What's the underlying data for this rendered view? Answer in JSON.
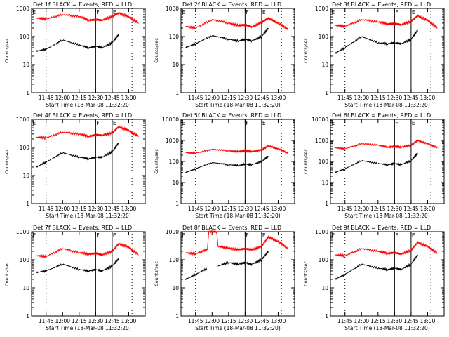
{
  "chart_data": [
    {
      "type": "line",
      "title": "Det 1f BLACK = Events, RED = LLD",
      "xlabel": "Start Time (18-Mar-08 11:32:20)",
      "ylabel": "Counts/sec",
      "yscale": "log",
      "ylim": [
        1,
        1000
      ],
      "xticks": [
        "11:45",
        "12:00",
        "12:15",
        "12:30",
        "12:45",
        "13:00"
      ],
      "yticks": [
        "1",
        "10",
        "100",
        "1000"
      ],
      "markers": {
        "dotted": "11:45",
        "solid": [
          "12:30",
          "12:45"
        ],
        "dotted2": "13:03"
      },
      "flag_labels": [
        "E",
        "F",
        "E"
      ],
      "flag_positions": [
        "11:32",
        "12:30",
        "12:45"
      ],
      "series": [
        {
          "color": "#ff0000",
          "x": [
            11.6,
            11.75,
            12.0,
            12.25,
            12.4,
            12.5,
            12.6,
            12.75,
            12.85,
            13.0,
            13.15
          ],
          "values": [
            450,
            420,
            600,
            520,
            380,
            400,
            380,
            520,
            700,
            500,
            300
          ]
        },
        {
          "color": "#000000",
          "x": [
            11.6,
            11.75,
            12.0,
            12.25,
            12.4,
            12.5,
            12.6,
            12.75,
            12.85
          ],
          "values": [
            30,
            35,
            75,
            50,
            40,
            45,
            40,
            60,
            120
          ]
        }
      ]
    },
    {
      "type": "line",
      "title": "Det 2f BLACK = Events, RED = LLD",
      "xlabel": "Start Time (18-Mar-08 11:32:20)",
      "ylabel": "Counts/sec",
      "yscale": "log",
      "ylim": [
        1,
        1000
      ],
      "xticks": [
        "11:45",
        "12:00",
        "12:15",
        "12:30",
        "12:45",
        "13:00"
      ],
      "yticks": [
        "1",
        "10",
        "100",
        "1000"
      ],
      "markers": {
        "dotted": "11:45",
        "solid": [
          "12:30",
          "12:45"
        ],
        "dotted2": "13:03"
      },
      "flag_labels": [
        "E",
        "F",
        "E"
      ],
      "flag_positions": [
        "11:32",
        "12:30",
        "12:45"
      ],
      "series": [
        {
          "color": "#ff0000",
          "x": [
            11.6,
            11.75,
            12.0,
            12.25,
            12.4,
            12.5,
            12.6,
            12.75,
            12.85,
            13.0,
            13.15
          ],
          "values": [
            230,
            200,
            400,
            300,
            250,
            260,
            220,
            320,
            450,
            300,
            180
          ]
        },
        {
          "color": "#000000",
          "x": [
            11.6,
            11.75,
            12.0,
            12.25,
            12.4,
            12.5,
            12.6,
            12.75,
            12.85
          ],
          "values": [
            40,
            55,
            110,
            80,
            70,
            80,
            70,
            100,
            200
          ]
        }
      ]
    },
    {
      "type": "line",
      "title": "Det 3f BLACK = Events, RED = LLD",
      "xlabel": "Start Time (18-Mar-08 11:32:20)",
      "ylabel": "Counts/sec",
      "yscale": "log",
      "ylim": [
        1,
        1000
      ],
      "xticks": [
        "11:45",
        "12:00",
        "12:15",
        "12:30",
        "12:45",
        "13:00"
      ],
      "yticks": [
        "1",
        "10",
        "100",
        "1000"
      ],
      "markers": {
        "dotted": "11:45",
        "solid": [
          "12:30",
          "12:45"
        ],
        "dotted2": "13:03"
      },
      "flag_labels": [
        "E",
        "F",
        "E"
      ],
      "flag_positions": [
        "11:32",
        "12:30",
        "12:45"
      ],
      "series": [
        {
          "color": "#ff0000",
          "x": [
            11.6,
            11.75,
            12.0,
            12.25,
            12.4,
            12.5,
            12.6,
            12.75,
            12.85,
            13.0,
            13.15
          ],
          "values": [
            250,
            230,
            400,
            330,
            280,
            290,
            260,
            350,
            550,
            380,
            200
          ]
        },
        {
          "color": "#000000",
          "x": [
            11.6,
            11.75,
            12.0,
            12.25,
            12.4,
            12.5,
            12.6,
            12.75,
            12.85
          ],
          "values": [
            25,
            40,
            100,
            60,
            55,
            60,
            55,
            80,
            170
          ]
        }
      ]
    },
    {
      "type": "line",
      "title": "Det 4f BLACK = Events, RED = LLD",
      "xlabel": "Start Time (18-Mar-08 11:32:20)",
      "ylabel": "Counts/sec",
      "yscale": "log",
      "ylim": [
        1,
        1000
      ],
      "xticks": [
        "11:45",
        "12:00",
        "12:15",
        "12:30",
        "12:45",
        "13:00"
      ],
      "yticks": [
        "1",
        "10",
        "100",
        "1000"
      ],
      "markers": {
        "dotted": "11:45",
        "solid": [
          "12:30",
          "12:45"
        ],
        "dotted2": "13:03"
      },
      "flag_labels": [
        "E",
        "F",
        "E"
      ],
      "flag_positions": [
        "11:32",
        "12:30",
        "12:45"
      ],
      "series": [
        {
          "color": "#ff0000",
          "x": [
            11.6,
            11.75,
            12.0,
            12.25,
            12.4,
            12.5,
            12.6,
            12.75,
            12.85,
            13.0,
            13.15
          ],
          "values": [
            230,
            220,
            350,
            300,
            250,
            280,
            270,
            330,
            550,
            400,
            250
          ]
        },
        {
          "color": "#000000",
          "x": [
            11.6,
            11.75,
            12.0,
            12.25,
            12.4,
            12.5,
            12.6,
            12.75,
            12.85
          ],
          "values": [
            20,
            30,
            65,
            45,
            40,
            45,
            45,
            70,
            150
          ]
        }
      ]
    },
    {
      "type": "line",
      "title": "Det 5f BLACK = Events, RED = LLD",
      "xlabel": "Start Time (18-Mar-08 11:32:20)",
      "ylabel": "Counts/sec",
      "yscale": "log",
      "ylim": [
        1,
        10000
      ],
      "xticks": [
        "11:45",
        "12:00",
        "12:15",
        "12:30",
        "12:45",
        "13:00"
      ],
      "yticks": [
        "1",
        "10",
        "100",
        "1000",
        "10000"
      ],
      "markers": {
        "dotted": "11:45",
        "solid": [
          "12:30",
          "12:45"
        ],
        "dotted2": "13:03"
      },
      "flag_labels": [
        "E",
        "F",
        "E"
      ],
      "flag_positions": [
        "11:32",
        "12:30",
        "12:45"
      ],
      "series": [
        {
          "color": "#ff0000",
          "x": [
            11.6,
            11.75,
            12.0,
            12.25,
            12.4,
            12.5,
            12.6,
            12.75,
            12.85,
            13.0,
            13.15
          ],
          "values": [
            260,
            250,
            380,
            320,
            300,
            320,
            300,
            350,
            550,
            400,
            250
          ]
        },
        {
          "color": "#000000",
          "x": [
            11.6,
            11.75,
            12.0,
            12.25,
            12.4,
            12.5,
            12.6,
            12.75,
            12.85
          ],
          "values": [
            30,
            45,
            90,
            70,
            65,
            75,
            70,
            100,
            180
          ]
        }
      ]
    },
    {
      "type": "line",
      "title": "Det 6f BLACK = Events, RED = LLD",
      "xlabel": "Start Time (18-Mar-08 11:32:20)",
      "ylabel": "Counts/sec",
      "yscale": "log",
      "ylim": [
        1,
        10000
      ],
      "xticks": [
        "11:45",
        "12:00",
        "12:15",
        "12:30",
        "12:45",
        "13:00"
      ],
      "yticks": [
        "1",
        "10",
        "100",
        "1000",
        "10000"
      ],
      "markers": {
        "dotted": "11:45",
        "solid": [
          "12:30",
          "12:45"
        ],
        "dotted2": "13:03"
      },
      "flag_labels": [
        "E",
        "F",
        "E"
      ],
      "flag_positions": [
        "11:32",
        "12:30",
        "12:45"
      ],
      "series": [
        {
          "color": "#ff0000",
          "x": [
            11.6,
            11.75,
            12.0,
            12.25,
            12.4,
            12.5,
            12.6,
            12.75,
            12.85,
            13.0,
            13.15
          ],
          "values": [
            450,
            400,
            700,
            600,
            480,
            520,
            480,
            600,
            1000,
            700,
            450
          ]
        },
        {
          "color": "#000000",
          "x": [
            11.6,
            11.75,
            12.0,
            12.25,
            12.4,
            12.5,
            12.6,
            12.75,
            12.85
          ],
          "values": [
            30,
            45,
            110,
            80,
            70,
            80,
            70,
            110,
            250
          ]
        }
      ]
    },
    {
      "type": "line",
      "title": "Det 7f BLACK = Events, RED = LLD",
      "xlabel": "Start Time (18-Mar-08 11:32:20)",
      "ylabel": "Counts/sec",
      "yscale": "log",
      "ylim": [
        1,
        1000
      ],
      "xticks": [
        "11:45",
        "12:00",
        "12:15",
        "12:30",
        "12:45",
        "13:00"
      ],
      "yticks": [
        "1",
        "10",
        "100",
        "1000"
      ],
      "markers": {
        "dotted": "11:45",
        "solid": [
          "12:30",
          "12:45"
        ],
        "dotted2": "13:03"
      },
      "flag_labels": [
        "E",
        "F",
        "E"
      ],
      "flag_positions": [
        "11:32",
        "12:30",
        "12:45"
      ],
      "series": [
        {
          "color": "#ff0000",
          "x": [
            11.6,
            11.75,
            12.0,
            12.25,
            12.4,
            12.5,
            12.6,
            12.75,
            12.85,
            13.0,
            13.15
          ],
          "values": [
            140,
            130,
            250,
            180,
            160,
            170,
            150,
            200,
            380,
            280,
            150
          ]
        },
        {
          "color": "#000000",
          "x": [
            11.6,
            11.75,
            12.0,
            12.25,
            12.4,
            12.5,
            12.6,
            12.75,
            12.85
          ],
          "values": [
            35,
            40,
            70,
            45,
            40,
            45,
            40,
            60,
            110
          ]
        }
      ]
    },
    {
      "type": "line",
      "title": "Det 8f BLACK = Events, RED = LLD",
      "xlabel": "Start Time (18-Mar-08 11:32:20)",
      "ylabel": "Counts/sec",
      "yscale": "log",
      "ylim": [
        1,
        1000
      ],
      "xticks": [
        "11:45",
        "12:00",
        "12:15",
        "12:30",
        "12:45",
        "13:00"
      ],
      "yticks": [
        "1",
        "10",
        "100",
        "1000"
      ],
      "markers": {
        "dotted": "11:45",
        "solid": [
          "12:30",
          "12:45"
        ],
        "dotted2": "13:03"
      },
      "flag_labels": [
        "E",
        "F",
        "E"
      ],
      "flag_positions": [
        "11:32",
        "12:30",
        "12:45"
      ],
      "series": [
        {
          "color": "#ff0000",
          "x": [
            11.6,
            11.75,
            11.93,
            11.95,
            12.07,
            12.09,
            12.25,
            12.4,
            12.5,
            12.6,
            12.75,
            12.85,
            13.0,
            13.15
          ],
          "values": [
            180,
            160,
            240,
            1000,
            1000,
            300,
            260,
            230,
            250,
            230,
            300,
            650,
            450,
            250
          ]
        },
        {
          "color": "#000000",
          "x": [
            11.6,
            11.75,
            11.93,
            11.95,
            12.07,
            12.09,
            12.25,
            12.4,
            12.5,
            12.6,
            12.75,
            12.85
          ],
          "values": [
            20,
            30,
            50,
            null,
            null,
            60,
            80,
            70,
            80,
            70,
            100,
            200
          ]
        }
      ]
    },
    {
      "type": "line",
      "title": "Det 9f BLACK = Events, RED = LLD",
      "xlabel": "Start Time (18-Mar-08 11:32:20)",
      "ylabel": "Counts/sec",
      "yscale": "log",
      "ylim": [
        1,
        1000
      ],
      "xticks": [
        "11:45",
        "12:00",
        "12:15",
        "12:30",
        "12:45",
        "13:00"
      ],
      "yticks": [
        "1",
        "10",
        "100",
        "1000"
      ],
      "markers": {
        "dotted": "11:45",
        "solid": [
          "12:30",
          "12:45"
        ],
        "dotted2": "13:03"
      },
      "flag_labels": [
        "E",
        "F",
        "E"
      ],
      "flag_positions": [
        "11:32",
        "12:30",
        "12:45"
      ],
      "series": [
        {
          "color": "#ff0000",
          "x": [
            11.6,
            11.75,
            12.0,
            12.25,
            12.4,
            12.5,
            12.6,
            12.75,
            12.85,
            13.0,
            13.15
          ],
          "values": [
            150,
            140,
            250,
            200,
            170,
            180,
            160,
            220,
            420,
            300,
            170
          ]
        },
        {
          "color": "#000000",
          "x": [
            11.6,
            11.75,
            12.0,
            12.25,
            12.4,
            12.5,
            12.6,
            12.75,
            12.85
          ],
          "values": [
            20,
            30,
            70,
            50,
            45,
            50,
            45,
            70,
            150
          ]
        }
      ]
    }
  ]
}
